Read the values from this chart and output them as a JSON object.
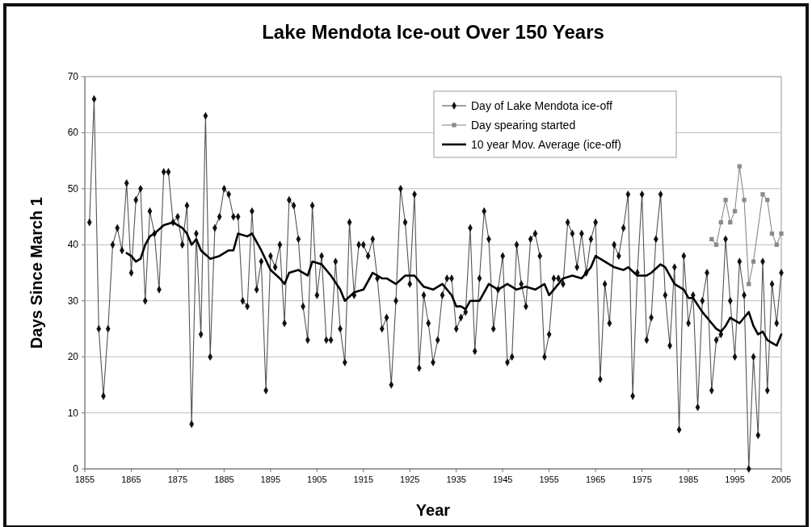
{
  "chart_data": {
    "type": "line",
    "title": "Lake Mendota Ice-out Over 150 Years",
    "xlabel": "Year",
    "ylabel": "Days Since March 1",
    "xlim": [
      1855,
      2005
    ],
    "xticks": [
      1855,
      1865,
      1875,
      1885,
      1895,
      1905,
      1915,
      1925,
      1935,
      1945,
      1955,
      1965,
      1975,
      1985,
      1995,
      2005
    ],
    "ylim": [
      0,
      70
    ],
    "yticks": [
      0,
      10,
      20,
      30,
      40,
      50,
      60,
      70
    ],
    "grid": "y",
    "legend": "top right",
    "line_style": "solid",
    "series": [
      {
        "name": "Day of Lake Mendota ice-off",
        "color": "#555555",
        "marker": "diamond",
        "x": [
          1856,
          1857,
          1858,
          1859,
          1860,
          1861,
          1862,
          1863,
          1864,
          1865,
          1866,
          1867,
          1868,
          1869,
          1870,
          1871,
          1872,
          1873,
          1874,
          1875,
          1876,
          1877,
          1878,
          1879,
          1880,
          1881,
          1882,
          1883,
          1884,
          1885,
          1886,
          1887,
          1888,
          1889,
          1890,
          1891,
          1892,
          1893,
          1894,
          1895,
          1896,
          1897,
          1898,
          1899,
          1900,
          1901,
          1902,
          1903,
          1904,
          1905,
          1906,
          1907,
          1908,
          1909,
          1910,
          1911,
          1912,
          1913,
          1914,
          1915,
          1916,
          1917,
          1918,
          1919,
          1920,
          1921,
          1922,
          1923,
          1924,
          1925,
          1926,
          1927,
          1928,
          1929,
          1930,
          1931,
          1932,
          1933,
          1934,
          1935,
          1936,
          1937,
          1938,
          1939,
          1940,
          1941,
          1942,
          1943,
          1944,
          1945,
          1946,
          1947,
          1948,
          1949,
          1950,
          1951,
          1952,
          1953,
          1954,
          1955,
          1956,
          1957,
          1958,
          1959,
          1960,
          1961,
          1962,
          1963,
          1964,
          1965,
          1966,
          1967,
          1968,
          1969,
          1970,
          1971,
          1972,
          1973,
          1974,
          1975,
          1976,
          1977,
          1978,
          1979,
          1980,
          1981,
          1982,
          1983,
          1984,
          1985,
          1986,
          1987,
          1988,
          1989,
          1990,
          1991,
          1992,
          1993,
          1994,
          1995,
          1996,
          1997,
          1998,
          1999,
          2000,
          2001,
          2002,
          2003,
          2004,
          2005
        ],
        "values": [
          44,
          66,
          25,
          13,
          25,
          40,
          43,
          39,
          51,
          35,
          48,
          50,
          30,
          46,
          42,
          32,
          53,
          53,
          44,
          45,
          40,
          47,
          8,
          42,
          24,
          63,
          20,
          43,
          45,
          50,
          49,
          45,
          45,
          30,
          29,
          46,
          32,
          37,
          14,
          38,
          36,
          40,
          26,
          48,
          47,
          41,
          29,
          23,
          47,
          31,
          38,
          23,
          23,
          37,
          25,
          19,
          44,
          31,
          40,
          40,
          38,
          41,
          34,
          25,
          27,
          15,
          30,
          50,
          44,
          33,
          49,
          18,
          31,
          26,
          19,
          23,
          31,
          34,
          34,
          25,
          27,
          28,
          43,
          21,
          34,
          46,
          41,
          25,
          32,
          38,
          19,
          20,
          40,
          33,
          29,
          41,
          42,
          38,
          20,
          24,
          34,
          34,
          33,
          44,
          42,
          36,
          42,
          35,
          41,
          44,
          16,
          33,
          26,
          40,
          38,
          43,
          49,
          13,
          35,
          49,
          23,
          27,
          41,
          49,
          31,
          22,
          36,
          7,
          38,
          26,
          31,
          11,
          30,
          35,
          14,
          23,
          24,
          41,
          30,
          20,
          37,
          31,
          0,
          20,
          6,
          37,
          14,
          33,
          26,
          35
        ]
      },
      {
        "name": "Day spearing started",
        "color": "#8a8a8a",
        "marker": "square",
        "x": [
          1990,
          1991,
          1992,
          1993,
          1994,
          1995,
          1996,
          1997,
          1998,
          1999,
          2001,
          2002,
          2003,
          2004,
          2005
        ],
        "values": [
          41,
          40,
          44,
          48,
          44,
          46,
          54,
          48,
          33,
          37,
          49,
          48,
          42,
          40,
          42
        ]
      },
      {
        "name": "10 year Mov. Average (ice-off)",
        "color": "#000000",
        "marker": "none",
        "x": [
          1864,
          1865,
          1866,
          1867,
          1868,
          1869,
          1870,
          1872,
          1874,
          1876,
          1877,
          1878,
          1879,
          1880,
          1882,
          1884,
          1886,
          1887,
          1888,
          1890,
          1891,
          1893,
          1895,
          1897,
          1898,
          1899,
          1901,
          1903,
          1904,
          1906,
          1908,
          1910,
          1911,
          1913,
          1915,
          1917,
          1919,
          1920,
          1922,
          1924,
          1926,
          1928,
          1930,
          1932,
          1934,
          1935,
          1936,
          1937,
          1938,
          1940,
          1942,
          1944,
          1946,
          1948,
          1950,
          1952,
          1954,
          1955,
          1956,
          1958,
          1960,
          1962,
          1964,
          1965,
          1967,
          1969,
          1971,
          1972,
          1974,
          1976,
          1977,
          1979,
          1980,
          1982,
          1984,
          1985,
          1986,
          1988,
          1990,
          1991,
          1992,
          1993,
          1994,
          1995,
          1996,
          1997,
          1998,
          1999,
          2000,
          2001,
          2002,
          2003,
          2004,
          2005
        ],
        "values": [
          38.5,
          38,
          37,
          37.5,
          40,
          41.5,
          42,
          43.5,
          44,
          43,
          42,
          40,
          41,
          39,
          37.5,
          38,
          39,
          39,
          42,
          41.5,
          42,
          39,
          35.5,
          34,
          33,
          35,
          35.5,
          34.5,
          37,
          36.5,
          34.5,
          32,
          30,
          31.5,
          32,
          35,
          34,
          34,
          33,
          34.5,
          34.5,
          32.5,
          32,
          33,
          31,
          29,
          29,
          28.5,
          30,
          30,
          33,
          32,
          33,
          32,
          32.5,
          32,
          33,
          31,
          32,
          34,
          34.5,
          34,
          36,
          38,
          37,
          36,
          35.5,
          36,
          34.5,
          34.5,
          35,
          36.5,
          36,
          33,
          32,
          30.5,
          30.5,
          28,
          26,
          25,
          24.5,
          25.5,
          27,
          26.5,
          26,
          27,
          28,
          25.5,
          24,
          24.5,
          23,
          22.5,
          22,
          24
        ]
      }
    ]
  }
}
